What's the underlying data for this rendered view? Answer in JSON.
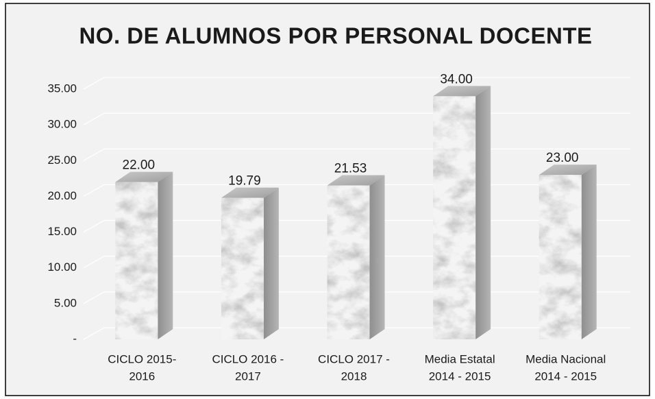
{
  "chart_data": {
    "type": "bar3d",
    "title": "NO. DE ALUMNOS POR PERSONAL DOCENTE",
    "categories": [
      [
        "CICLO 2015-",
        "2016"
      ],
      [
        "CICLO 2016 -",
        "2017"
      ],
      [
        "CICLO 2017 -",
        "2018"
      ],
      [
        "Media Estatal",
        "2014 - 2015"
      ],
      [
        "Media Nacional",
        "2014 - 2015"
      ]
    ],
    "values": [
      22,
      19.79,
      21.53,
      34,
      23
    ],
    "value_labels": [
      "22.00",
      "19.79",
      "21.53",
      "34.00",
      "23.00"
    ],
    "ylim": [
      0,
      35
    ],
    "yticks": [
      {
        "value": 0,
        "label": "-"
      },
      {
        "value": 5,
        "label": "5.00"
      },
      {
        "value": 10,
        "label": "10.00"
      },
      {
        "value": 15,
        "label": "15.00"
      },
      {
        "value": 20,
        "label": "20.00"
      },
      {
        "value": 25,
        "label": "25.00"
      },
      {
        "value": 30,
        "label": "30.00"
      },
      {
        "value": 35,
        "label": "35.00"
      }
    ],
    "grid": true,
    "color": "#f4f4f4"
  }
}
